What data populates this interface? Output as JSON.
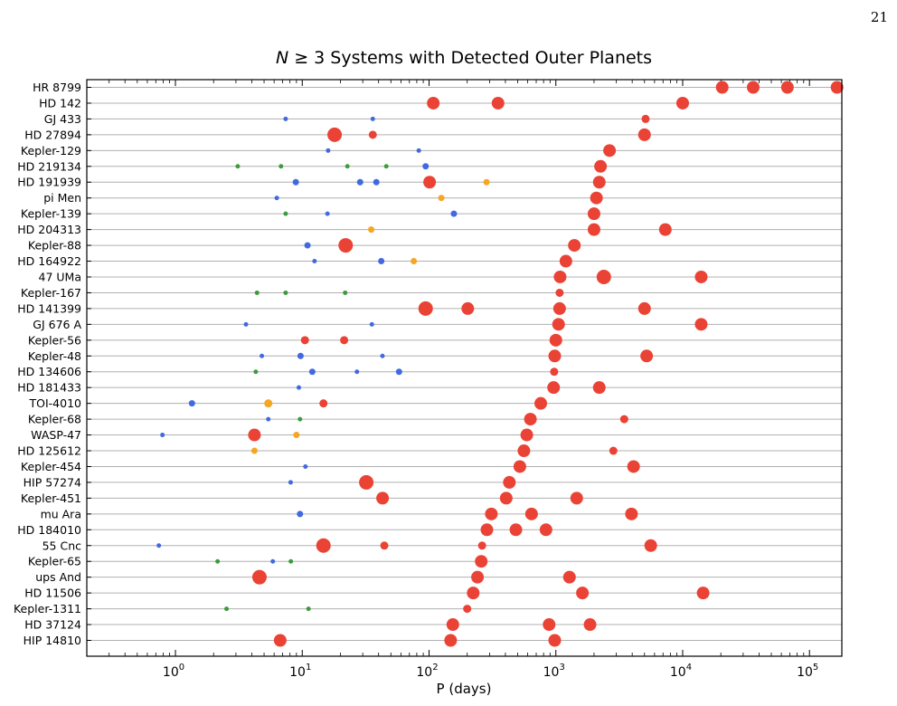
{
  "page_number": "21",
  "chart_data": {
    "type": "scatter",
    "title_prefix": "N",
    "title_rest": " ≥ 3 Systems with Detected Outer Planets",
    "xlabel": "P (days)",
    "ylabel": "",
    "x_scale": "log",
    "xlim": [
      0.2,
      180000
    ],
    "x_ticks": [
      {
        "value": 1,
        "base": "10",
        "exp": "0"
      },
      {
        "value": 10,
        "base": "10",
        "exp": "1"
      },
      {
        "value": 100,
        "base": "10",
        "exp": "2"
      },
      {
        "value": 1000,
        "base": "10",
        "exp": "3"
      },
      {
        "value": 10000,
        "base": "10",
        "exp": "4"
      },
      {
        "value": 100000,
        "base": "10",
        "exp": "5"
      }
    ],
    "grid": "horizontal",
    "colors": {
      "red": "#ea4335",
      "blue": "#4169e1",
      "green": "#3c9c3c",
      "orange": "#f5a623"
    },
    "size_scale": {
      "xs": 2.5,
      "s": 3.5,
      "m": 4.5,
      "l": 7,
      "xl": 8
    },
    "systems": [
      {
        "name": "HR 8799",
        "planets": [
          [
            20500,
            "red",
            "l"
          ],
          [
            36000,
            "red",
            "l"
          ],
          [
            67000,
            "red",
            "l"
          ],
          [
            165000,
            "red",
            "l"
          ]
        ]
      },
      {
        "name": "HD 142",
        "planets": [
          [
            108,
            "red",
            "l"
          ],
          [
            350,
            "red",
            "l"
          ],
          [
            10000,
            "red",
            "l"
          ]
        ]
      },
      {
        "name": "GJ 433",
        "planets": [
          [
            7.4,
            "blue",
            "xs"
          ],
          [
            36,
            "blue",
            "xs"
          ],
          [
            5100,
            "red",
            "m"
          ]
        ]
      },
      {
        "name": "HD 27894",
        "planets": [
          [
            18,
            "red",
            "xl"
          ],
          [
            36,
            "red",
            "m"
          ],
          [
            5000,
            "red",
            "l"
          ]
        ]
      },
      {
        "name": "Kepler-129",
        "planets": [
          [
            16,
            "blue",
            "xs"
          ],
          [
            83,
            "blue",
            "xs"
          ],
          [
            2650,
            "red",
            "l"
          ]
        ]
      },
      {
        "name": "HD 219134",
        "planets": [
          [
            3.1,
            "green",
            "xs"
          ],
          [
            6.8,
            "green",
            "xs"
          ],
          [
            22.7,
            "green",
            "xs"
          ],
          [
            46,
            "green",
            "xs"
          ],
          [
            94,
            "blue",
            "s"
          ],
          [
            2250,
            "red",
            "l"
          ]
        ]
      },
      {
        "name": "HD 191939",
        "planets": [
          [
            8.9,
            "blue",
            "s"
          ],
          [
            28.6,
            "blue",
            "s"
          ],
          [
            38.4,
            "blue",
            "s"
          ],
          [
            101,
            "red",
            "l"
          ],
          [
            284,
            "orange",
            "s"
          ],
          [
            2200,
            "red",
            "l"
          ]
        ]
      },
      {
        "name": "pi Men",
        "planets": [
          [
            6.3,
            "blue",
            "xs"
          ],
          [
            125,
            "orange",
            "s"
          ],
          [
            2090,
            "red",
            "l"
          ]
        ]
      },
      {
        "name": "Kepler-139",
        "planets": [
          [
            7.4,
            "green",
            "xs"
          ],
          [
            15.8,
            "blue",
            "xs"
          ],
          [
            157,
            "blue",
            "s"
          ],
          [
            2000,
            "red",
            "l"
          ]
        ]
      },
      {
        "name": "HD 204313",
        "planets": [
          [
            35,
            "orange",
            "s"
          ],
          [
            2000,
            "red",
            "l"
          ],
          [
            7300,
            "red",
            "l"
          ]
        ]
      },
      {
        "name": "Kepler-88",
        "planets": [
          [
            11,
            "blue",
            "s"
          ],
          [
            22,
            "red",
            "xl"
          ],
          [
            1400,
            "red",
            "l"
          ]
        ]
      },
      {
        "name": "HD 164922",
        "planets": [
          [
            12.5,
            "blue",
            "xs"
          ],
          [
            42,
            "blue",
            "s"
          ],
          [
            75.8,
            "orange",
            "s"
          ],
          [
            1200,
            "red",
            "l"
          ]
        ]
      },
      {
        "name": "47 UMa",
        "planets": [
          [
            1080,
            "red",
            "l"
          ],
          [
            2390,
            "red",
            "xl"
          ],
          [
            14000,
            "red",
            "l"
          ]
        ]
      },
      {
        "name": "Kepler-167",
        "planets": [
          [
            4.4,
            "green",
            "xs"
          ],
          [
            7.4,
            "green",
            "xs"
          ],
          [
            21.8,
            "green",
            "xs"
          ],
          [
            1070,
            "red",
            "m"
          ]
        ]
      },
      {
        "name": "HD 141399",
        "planets": [
          [
            94,
            "red",
            "xl"
          ],
          [
            202,
            "red",
            "l"
          ],
          [
            1070,
            "red",
            "l"
          ],
          [
            5000,
            "red",
            "l"
          ]
        ]
      },
      {
        "name": "GJ 676 A",
        "planets": [
          [
            3.6,
            "blue",
            "xs"
          ],
          [
            35.4,
            "blue",
            "xs"
          ],
          [
            1050,
            "red",
            "l"
          ],
          [
            14000,
            "red",
            "l"
          ]
        ]
      },
      {
        "name": "Kepler-56",
        "planets": [
          [
            10.5,
            "red",
            "m"
          ],
          [
            21.4,
            "red",
            "m"
          ],
          [
            1000,
            "red",
            "l"
          ]
        ]
      },
      {
        "name": "Kepler-48",
        "planets": [
          [
            4.8,
            "blue",
            "xs"
          ],
          [
            9.7,
            "blue",
            "s"
          ],
          [
            42.9,
            "blue",
            "xs"
          ],
          [
            980,
            "red",
            "l"
          ],
          [
            5200,
            "red",
            "l"
          ]
        ]
      },
      {
        "name": "HD 134606",
        "planets": [
          [
            4.3,
            "green",
            "xs"
          ],
          [
            12,
            "blue",
            "s"
          ],
          [
            27,
            "blue",
            "xs"
          ],
          [
            58,
            "blue",
            "s"
          ],
          [
            970,
            "red",
            "m"
          ]
        ]
      },
      {
        "name": "HD 181433",
        "planets": [
          [
            9.4,
            "blue",
            "xs"
          ],
          [
            960,
            "red",
            "l"
          ],
          [
            2200,
            "red",
            "l"
          ]
        ]
      },
      {
        "name": "TOI-4010",
        "planets": [
          [
            1.35,
            "blue",
            "s"
          ],
          [
            5.4,
            "orange",
            "m"
          ],
          [
            14.7,
            "red",
            "m"
          ],
          [
            760,
            "red",
            "l"
          ]
        ]
      },
      {
        "name": "Kepler-68",
        "planets": [
          [
            5.4,
            "blue",
            "xs"
          ],
          [
            9.6,
            "green",
            "xs"
          ],
          [
            630,
            "red",
            "l"
          ],
          [
            3460,
            "red",
            "m"
          ]
        ]
      },
      {
        "name": "WASP-47",
        "planets": [
          [
            0.79,
            "blue",
            "xs"
          ],
          [
            4.2,
            "red",
            "l"
          ],
          [
            9.0,
            "orange",
            "s"
          ],
          [
            590,
            "red",
            "l"
          ]
        ]
      },
      {
        "name": "HD 125612",
        "planets": [
          [
            4.2,
            "orange",
            "s"
          ],
          [
            560,
            "red",
            "l"
          ],
          [
            2840,
            "red",
            "m"
          ]
        ]
      },
      {
        "name": "Kepler-454",
        "planets": [
          [
            10.6,
            "blue",
            "xs"
          ],
          [
            520,
            "red",
            "l"
          ],
          [
            4100,
            "red",
            "l"
          ]
        ]
      },
      {
        "name": "HIP 57274",
        "planets": [
          [
            8.1,
            "blue",
            "xs"
          ],
          [
            32,
            "red",
            "xl"
          ],
          [
            430,
            "red",
            "l"
          ]
        ]
      },
      {
        "name": "Kepler-451",
        "planets": [
          [
            43,
            "red",
            "l"
          ],
          [
            406,
            "red",
            "l"
          ],
          [
            1460,
            "red",
            "l"
          ]
        ]
      },
      {
        "name": "mu Ara",
        "planets": [
          [
            9.6,
            "blue",
            "s"
          ],
          [
            310,
            "red",
            "l"
          ],
          [
            643,
            "red",
            "l"
          ],
          [
            3950,
            "red",
            "l"
          ]
        ]
      },
      {
        "name": "HD 184010",
        "planets": [
          [
            286,
            "red",
            "l"
          ],
          [
            484,
            "red",
            "l"
          ],
          [
            836,
            "red",
            "l"
          ]
        ]
      },
      {
        "name": "55 Cnc",
        "planets": [
          [
            0.74,
            "blue",
            "xs"
          ],
          [
            14.7,
            "red",
            "xl"
          ],
          [
            44.4,
            "red",
            "m"
          ],
          [
            262,
            "red",
            "m"
          ],
          [
            5600,
            "red",
            "l"
          ]
        ]
      },
      {
        "name": "Kepler-65",
        "planets": [
          [
            2.15,
            "green",
            "xs"
          ],
          [
            5.86,
            "blue",
            "xs"
          ],
          [
            8.13,
            "green",
            "xs"
          ],
          [
            258,
            "red",
            "l"
          ]
        ]
      },
      {
        "name": "ups And",
        "planets": [
          [
            4.6,
            "red",
            "xl"
          ],
          [
            241,
            "red",
            "l"
          ],
          [
            1280,
            "red",
            "l"
          ]
        ]
      },
      {
        "name": "HD 11506",
        "planets": [
          [
            223,
            "red",
            "l"
          ],
          [
            1620,
            "red",
            "l"
          ],
          [
            14500,
            "red",
            "l"
          ]
        ]
      },
      {
        "name": "Kepler-1311",
        "planets": [
          [
            2.53,
            "green",
            "xs"
          ],
          [
            11.2,
            "green",
            "xs"
          ],
          [
            200,
            "red",
            "m"
          ]
        ]
      },
      {
        "name": "HD 37124",
        "planets": [
          [
            154,
            "red",
            "l"
          ],
          [
            885,
            "red",
            "l"
          ],
          [
            1860,
            "red",
            "l"
          ]
        ]
      },
      {
        "name": "HIP 14810",
        "planets": [
          [
            6.7,
            "red",
            "l"
          ],
          [
            148,
            "red",
            "l"
          ],
          [
            980,
            "red",
            "l"
          ]
        ]
      }
    ]
  }
}
